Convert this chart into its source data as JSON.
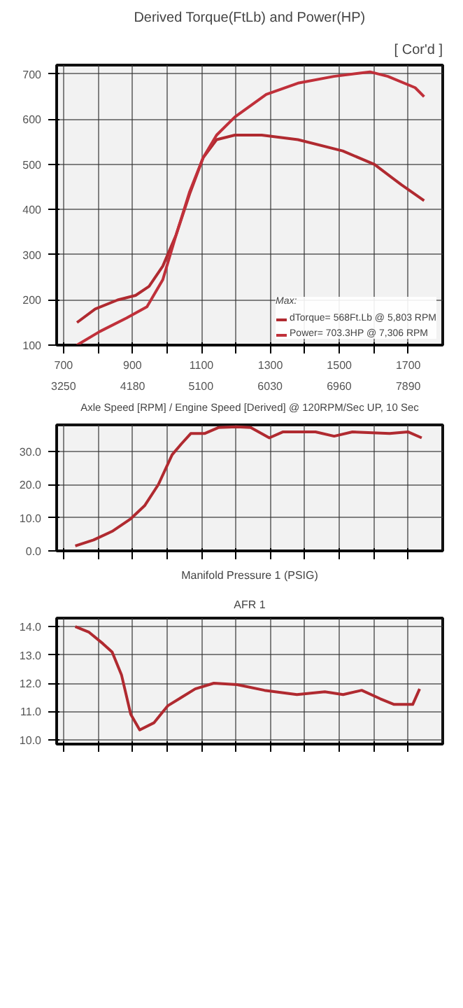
{
  "chart_data": [
    {
      "type": "line",
      "title": "Derived Torque(FtLb) and Power(HP)",
      "subtitle": "[ Cor'd ]",
      "xlabel": "Axle Speed [RPM] / Engine Speed [Derived] @ 120RPM/Sec UP, 10 Sec",
      "legend_title": "Max:",
      "legend": "bottom right",
      "grid": true,
      "xlim": [
        680,
        1800
      ],
      "ylim": [
        100,
        720
      ],
      "xticks": [
        700,
        {
          "value": 800,
          "label": null
        },
        900,
        {
          "value": 1000,
          "label": null
        },
        1100,
        {
          "value": 1200,
          "label": null
        },
        1300,
        {
          "value": 1400,
          "label": null
        },
        1500,
        {
          "value": 1600,
          "label": null
        },
        1700
      ],
      "x2lim": [
        3157,
        8354
      ],
      "x2ticks": [
        3250,
        4180,
        5100,
        6030,
        6960,
        7890
      ],
      "yticks": [
        100,
        200,
        300,
        400,
        500,
        600,
        700
      ],
      "series": [
        {
          "name": "dTorque= 568Ft.Lb @ 5,803 RPM",
          "color": "#b02a30",
          "x": [
            739,
            792,
            857,
            909,
            948,
            988,
            1027,
            1066,
            1105,
            1144,
            1197,
            1275,
            1380,
            1510,
            1602,
            1680,
            1746
          ],
          "values": [
            150,
            180,
            200,
            210,
            230,
            275,
            345,
            435,
            515,
            555,
            565,
            565,
            555,
            530,
            500,
            455,
            420
          ]
        },
        {
          "name": "Power= 703.3HP @ 7,306 RPM",
          "color": "#c0303a",
          "x": [
            739,
            805,
            883,
            942,
            988,
            1027,
            1066,
            1105,
            1144,
            1197,
            1288,
            1380,
            1484,
            1589,
            1641,
            1720,
            1746
          ],
          "values": [
            100,
            130,
            160,
            185,
            245,
            345,
            440,
            515,
            565,
            605,
            655,
            680,
            695,
            705,
            695,
            670,
            650
          ]
        }
      ]
    },
    {
      "type": "line",
      "title": "Manifold Pressure 1 (PSIG)",
      "grid": true,
      "tick_labels": "y",
      "xlim": [
        680,
        1800
      ],
      "ylim": [
        0,
        38
      ],
      "xticks": [
        700,
        800,
        900,
        1000,
        1100,
        1200,
        1300,
        1400,
        1500,
        1600,
        1700
      ],
      "yticks": [
        {
          "value": 0,
          "label": "0.0"
        },
        {
          "value": 10,
          "label": "10.0"
        },
        {
          "value": 20,
          "label": "20.0"
        },
        {
          "value": 30,
          "label": "30.0"
        }
      ],
      "series": [
        {
          "color": "#b02a30",
          "x": [
            734,
            787,
            841,
            895,
            935,
            975,
            1015,
            1042,
            1069,
            1109,
            1149,
            1203,
            1243,
            1297,
            1337,
            1431,
            1485,
            1538,
            1646,
            1699,
            1739
          ],
          "values": [
            1.5,
            3.3,
            5.9,
            9.7,
            13.6,
            20,
            29,
            32.3,
            35.4,
            35.4,
            37.2,
            37.4,
            37.2,
            34.1,
            35.9,
            35.9,
            34.6,
            35.9,
            35.4,
            35.9,
            34.1
          ]
        }
      ]
    },
    {
      "type": "line",
      "title": "AFR 1",
      "grid": true,
      "tick_labels": "y",
      "xlim": [
        680,
        1800
      ],
      "ylim": [
        9.85,
        14.3
      ],
      "xticks": [
        700,
        800,
        900,
        1000,
        1100,
        1200,
        1300,
        1400,
        1500,
        1600,
        1700
      ],
      "yticks": [
        {
          "value": 10,
          "label": "10.0"
        },
        {
          "value": 11,
          "label": "11.0"
        },
        {
          "value": 12,
          "label": "12.0"
        },
        {
          "value": 13,
          "label": "13.0"
        },
        {
          "value": 14,
          "label": "14.0"
        }
      ],
      "series": [
        {
          "color": "#b02a30",
          "x": [
            734,
            774,
            814,
            841,
            868,
            895,
            921,
            962,
            1002,
            1042,
            1082,
            1136,
            1203,
            1283,
            1377,
            1458,
            1511,
            1565,
            1619,
            1659,
            1713,
            1733
          ],
          "values": [
            14.0,
            13.8,
            13.4,
            13.1,
            12.3,
            10.9,
            10.35,
            10.6,
            11.2,
            11.5,
            11.8,
            12.0,
            11.95,
            11.75,
            11.6,
            11.7,
            11.6,
            11.75,
            11.45,
            11.25,
            11.25,
            11.8
          ]
        }
      ]
    }
  ]
}
